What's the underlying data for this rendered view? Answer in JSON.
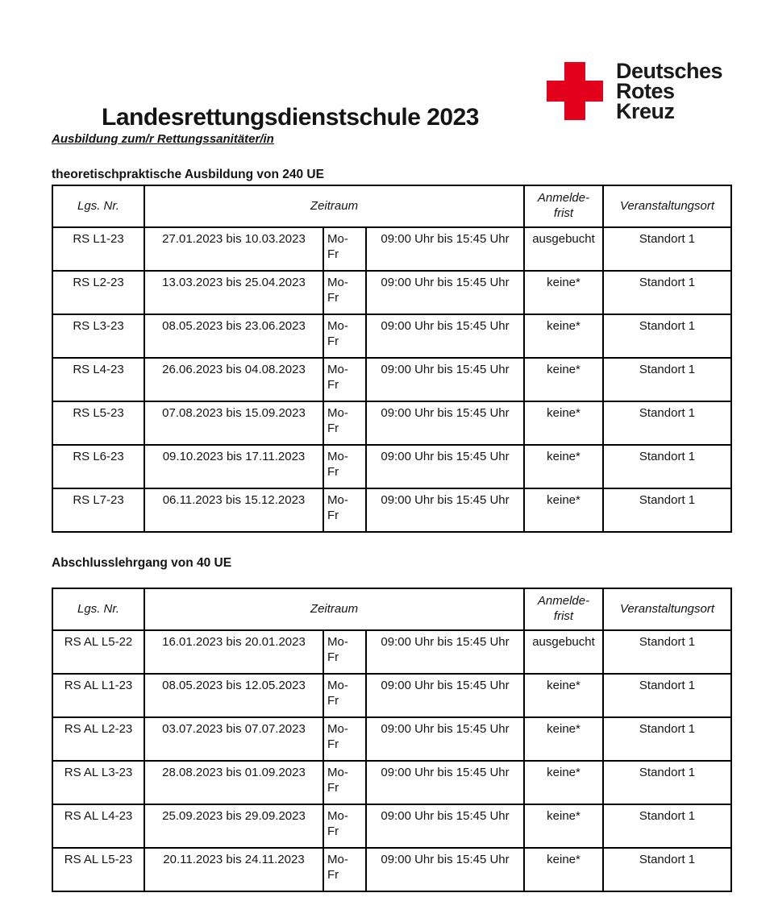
{
  "page": {
    "title": "Landesrettungsdienstschule 2023",
    "subtitle": "Ausbildung zum/r Rettungssanitäter/in"
  },
  "logo": {
    "name": "Deutsches Rotes Kreuz",
    "lines": [
      "Deutsches",
      "Rotes",
      "Kreuz"
    ],
    "cross_color": "#e2001a"
  },
  "sections": [
    {
      "heading": "theoretischpraktische Ausbildung von 240 UE",
      "columns": [
        "Lgs. Nr.",
        "Zeitraum",
        "Anmelde-\nfrist",
        "Veranstaltungsort"
      ],
      "rows": [
        {
          "lgs": "RS L1-23",
          "dates": "27.01.2023 bis 10.03.2023",
          "days": "Mo-\nFr",
          "time": "09:00 Uhr bis 15:45 Uhr",
          "frist": "ausgebucht",
          "ort": "Standort 1"
        },
        {
          "lgs": "RS L2-23",
          "dates": "13.03.2023 bis 25.04.2023",
          "days": "Mo-\nFr",
          "time": "09:00 Uhr bis 15:45 Uhr",
          "frist": "keine*",
          "ort": "Standort 1"
        },
        {
          "lgs": "RS L3-23",
          "dates": "08.05.2023 bis 23.06.2023",
          "days": "Mo-\nFr",
          "time": "09:00 Uhr bis 15:45 Uhr",
          "frist": "keine*",
          "ort": "Standort 1"
        },
        {
          "lgs": "RS L4-23",
          "dates": "26.06.2023 bis 04.08.2023",
          "days": "Mo-\nFr",
          "time": "09:00 Uhr bis 15:45 Uhr",
          "frist": "keine*",
          "ort": "Standort 1"
        },
        {
          "lgs": "RS L5-23",
          "dates": "07.08.2023 bis 15.09.2023",
          "days": "Mo-\nFr",
          "time": "09:00 Uhr bis 15:45 Uhr",
          "frist": "keine*",
          "ort": "Standort 1"
        },
        {
          "lgs": "RS L6-23",
          "dates": "09.10.2023 bis 17.11.2023",
          "days": "Mo-\nFr",
          "time": "09:00 Uhr bis 15:45 Uhr",
          "frist": "keine*",
          "ort": "Standort 1"
        },
        {
          "lgs": "RS L7-23",
          "dates": "06.11.2023 bis 15.12.2023",
          "days": "Mo-\nFr",
          "time": "09:00 Uhr bis 15:45 Uhr",
          "frist": "keine*",
          "ort": "Standort 1"
        }
      ]
    },
    {
      "heading": "Abschlusslehrgang von 40 UE",
      "columns": [
        "Lgs. Nr.",
        "Zeitraum",
        "Anmelde-\nfrist",
        "Veranstaltungsort"
      ],
      "rows": [
        {
          "lgs": "RS AL L5-22",
          "dates": "16.01.2023 bis 20.01.2023",
          "days": "Mo-\nFr",
          "time": "09:00 Uhr bis 15:45 Uhr",
          "frist": "ausgebucht",
          "ort": "Standort 1"
        },
        {
          "lgs": "RS AL L1-23",
          "dates": "08.05.2023 bis 12.05.2023",
          "days": "Mo-\nFr",
          "time": "09:00 Uhr bis 15:45 Uhr",
          "frist": "keine*",
          "ort": "Standort 1"
        },
        {
          "lgs": "RS AL L2-23",
          "dates": "03.07.2023 bis 07.07.2023",
          "days": "Mo-\nFr",
          "time": "09:00 Uhr bis 15:45 Uhr",
          "frist": "keine*",
          "ort": "Standort 1"
        },
        {
          "lgs": "RS AL L3-23",
          "dates": "28.08.2023 bis 01.09.2023",
          "days": "Mo-\nFr",
          "time": "09:00 Uhr bis 15:45 Uhr",
          "frist": "keine*",
          "ort": "Standort 1"
        },
        {
          "lgs": "RS AL L4-23",
          "dates": "25.09.2023 bis 29.09.2023",
          "days": "Mo-\nFr",
          "time": "09:00 Uhr bis 15:45 Uhr",
          "frist": "keine*",
          "ort": "Standort 1"
        },
        {
          "lgs": "RS AL L5-23",
          "dates": "20.11.2023 bis 24.11.2023",
          "days": "Mo-\nFr",
          "time": "09:00 Uhr bis 15:45 Uhr",
          "frist": "keine*",
          "ort": "Standort 1"
        }
      ]
    }
  ]
}
